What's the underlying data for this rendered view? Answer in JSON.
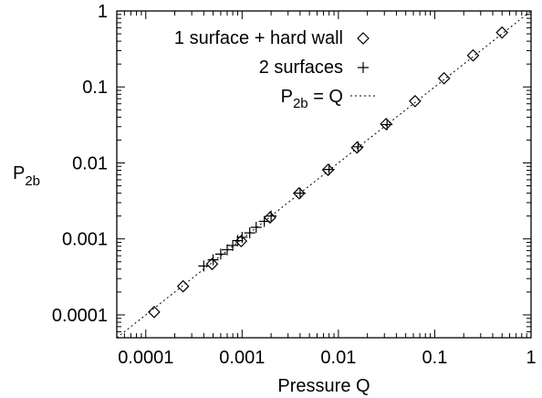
{
  "chart_data": {
    "type": "scatter",
    "xscale": "log",
    "yscale": "log",
    "xlim": [
      5e-05,
      1
    ],
    "ylim": [
      5e-05,
      1
    ],
    "xlabel": "Pressure Q",
    "ylabel": {
      "main": "P",
      "sub": "2b"
    },
    "xticks": [
      {
        "value": 0.0001,
        "label": "0.0001"
      },
      {
        "value": 0.001,
        "label": "0.001"
      },
      {
        "value": 0.01,
        "label": "0.01"
      },
      {
        "value": 0.1,
        "label": "0.1"
      },
      {
        "value": 1,
        "label": "1"
      }
    ],
    "yticks": [
      {
        "value": 0.0001,
        "label": "0.0001"
      },
      {
        "value": 0.001,
        "label": "0.001"
      },
      {
        "value": 0.01,
        "label": "0.01"
      },
      {
        "value": 0.1,
        "label": "0.1"
      },
      {
        "value": 1,
        "label": "1"
      }
    ],
    "grid": false,
    "legend_position": "top-right",
    "series": [
      {
        "name": "1 surface + hard wall",
        "marker": "diamond",
        "points": [
          [
            0.000122,
            0.000109
          ],
          [
            0.000244,
            0.000238
          ],
          [
            0.000488,
            0.000467
          ],
          [
            0.000977,
            0.000935
          ],
          [
            0.00195,
            0.00191
          ],
          [
            0.00391,
            0.00398
          ],
          [
            0.00781,
            0.0081
          ],
          [
            0.0156,
            0.0159
          ],
          [
            0.03125,
            0.0325
          ],
          [
            0.0625,
            0.065
          ],
          [
            0.125,
            0.13
          ],
          [
            0.25,
            0.26
          ],
          [
            0.5,
            0.52
          ]
        ]
      },
      {
        "name": "2 surfaces",
        "marker": "plus",
        "points": [
          [
            0.0004,
            0.00044
          ],
          [
            0.0005,
            0.00053
          ],
          [
            0.0006,
            0.00063
          ],
          [
            0.0007,
            0.00072
          ],
          [
            0.0008,
            0.00082
          ],
          [
            0.0009,
            0.00095
          ],
          [
            0.001,
            0.00105
          ],
          [
            0.0012,
            0.0012
          ],
          [
            0.0014,
            0.00142
          ],
          [
            0.0017,
            0.0017
          ],
          [
            0.002,
            0.002
          ],
          [
            0.004,
            0.004
          ],
          [
            0.008,
            0.0082
          ],
          [
            0.016,
            0.0163
          ],
          [
            0.032,
            0.032
          ]
        ]
      },
      {
        "name": {
          "main": "P",
          "sub": "2b",
          "rest": " = Q"
        },
        "style": "dotted-line",
        "points": [
          [
            5e-05,
            5e-05
          ],
          [
            1,
            1
          ]
        ]
      }
    ]
  }
}
